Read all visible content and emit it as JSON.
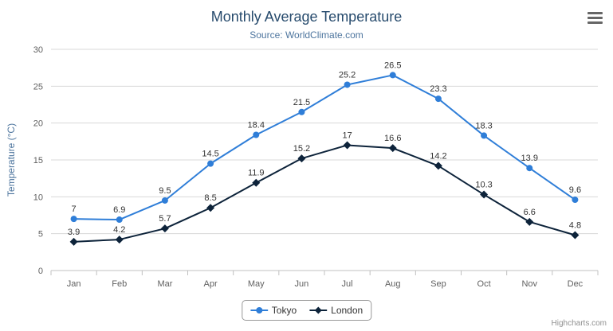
{
  "header": {
    "title": "Monthly Average Temperature",
    "subtitle": "Source: WorldClimate.com"
  },
  "credits": {
    "label": "Highcharts.com"
  },
  "chart_data": {
    "type": "line",
    "title": "Monthly Average Temperature",
    "subtitle": "Source: WorldClimate.com",
    "categories": [
      "Jan",
      "Feb",
      "Mar",
      "Apr",
      "May",
      "Jun",
      "Jul",
      "Aug",
      "Sep",
      "Oct",
      "Nov",
      "Dec"
    ],
    "series": [
      {
        "name": "Tokyo",
        "marker": "circle",
        "color": "#2f7ed8",
        "values": [
          7,
          6.9,
          9.5,
          14.5,
          18.4,
          21.5,
          25.2,
          26.5,
          23.3,
          18.3,
          13.9,
          9.6
        ]
      },
      {
        "name": "London",
        "marker": "diamond",
        "color": "#0d233a",
        "values": [
          3.9,
          4.2,
          5.7,
          8.5,
          11.9,
          15.2,
          17,
          16.6,
          14.2,
          10.3,
          6.6,
          4.8
        ]
      }
    ],
    "xlabel": "",
    "ylabel": "Temperature (°C)",
    "ylim": [
      0,
      30
    ],
    "ytick_step": 5,
    "grid": true,
    "legend_position": "bottom",
    "data_labels": true
  },
  "colors": {
    "title": "#274b6d",
    "subtitle": "#4d759e",
    "axis_title": "#4d759e",
    "tick_label": "#606060",
    "grid": "#d8d8d8",
    "axis_line": "#c0c0c0",
    "data_label": "#333333",
    "credits": "#909090"
  }
}
